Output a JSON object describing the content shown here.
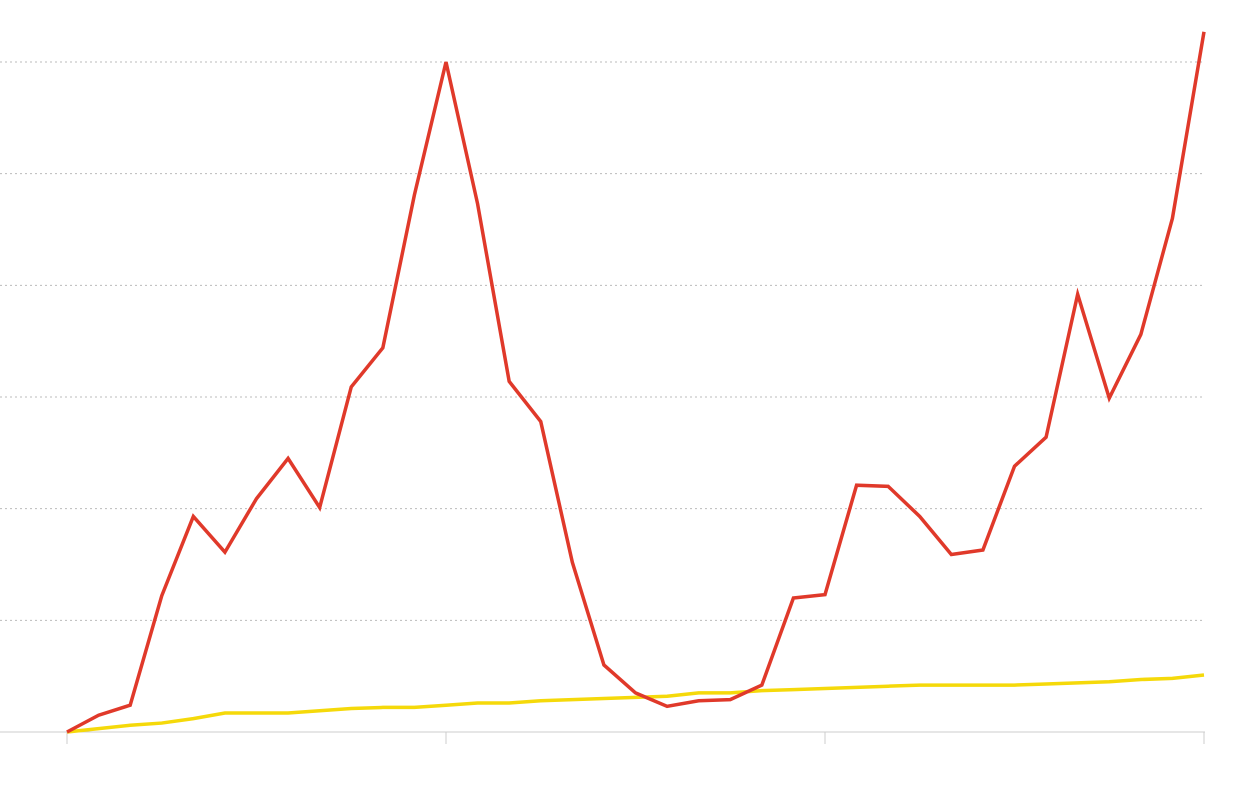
{
  "chart_data": {
    "type": "line",
    "x": [
      0,
      1,
      2,
      3,
      4,
      5,
      6,
      7,
      8,
      9,
      10,
      11,
      12,
      13,
      14,
      15,
      16,
      17,
      18,
      19,
      20,
      21,
      22,
      23,
      24,
      25,
      26,
      27,
      28,
      29,
      30,
      31,
      32,
      33,
      34,
      35,
      36
    ],
    "series": [
      {
        "color": "#e0392a",
        "values": [
          0,
          0.15,
          0.24,
          1.22,
          1.93,
          1.61,
          2.09,
          2.45,
          2.01,
          3.09,
          3.44,
          4.81,
          6.0,
          4.73,
          3.14,
          2.78,
          1.52,
          0.6,
          0.35,
          0.23,
          0.28,
          0.29,
          0.42,
          1.2,
          1.23,
          2.21,
          2.2,
          1.93,
          1.59,
          1.63,
          2.38,
          2.64,
          3.92,
          2.99,
          3.56,
          4.6,
          6.27
        ]
      },
      {
        "color": "#f5d90a",
        "values": [
          0,
          0.03,
          0.06,
          0.08,
          0.12,
          0.17,
          0.17,
          0.17,
          0.19,
          0.21,
          0.22,
          0.22,
          0.24,
          0.26,
          0.26,
          0.28,
          0.29,
          0.3,
          0.31,
          0.32,
          0.35,
          0.35,
          0.37,
          0.38,
          0.39,
          0.4,
          0.41,
          0.42,
          0.42,
          0.42,
          0.42,
          0.43,
          0.44,
          0.45,
          0.47,
          0.48,
          0.51
        ]
      }
    ],
    "xlim": [
      0,
      36
    ],
    "xticks": [
      0,
      12,
      24,
      36
    ],
    "ylim": [
      0,
      6.3
    ],
    "yticks": [
      0,
      1,
      2,
      3,
      4,
      5,
      6
    ],
    "grid": true
  }
}
